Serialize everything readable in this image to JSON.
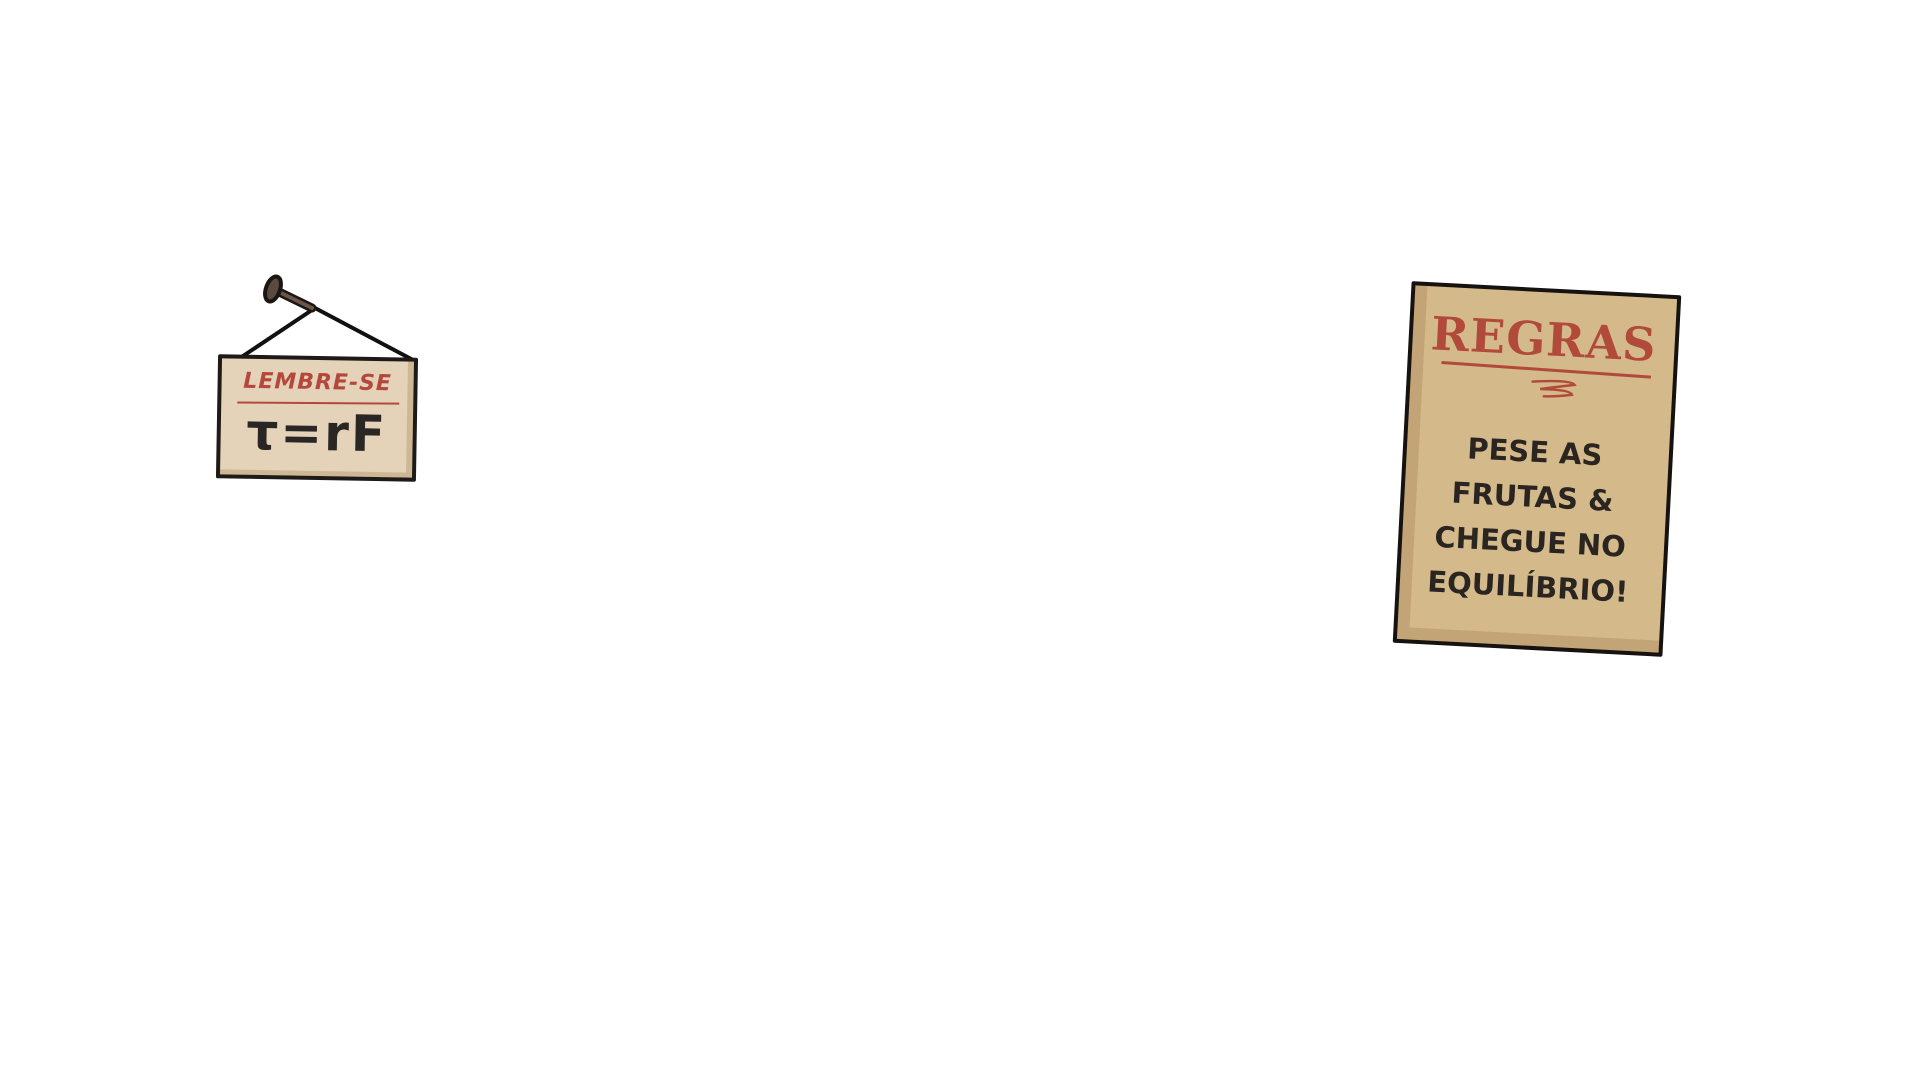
{
  "reminder_sign": {
    "title": "LEMBRE-SE",
    "formula": "τ=rF"
  },
  "rules_poster": {
    "title": "REGRAS",
    "lines": [
      "PESE AS",
      "FRUTAS &",
      "CHEGUE NO",
      "EQUILÍBRIO!"
    ]
  },
  "colors": {
    "background": "#ffffff",
    "sign_board": "#e4d3b9",
    "poster_board": "#d4b98b",
    "accent_red": "#b5483d",
    "ink": "#1e1a17"
  },
  "icons": {
    "nail": "nail-icon",
    "squiggle": "squiggle-decoration"
  }
}
